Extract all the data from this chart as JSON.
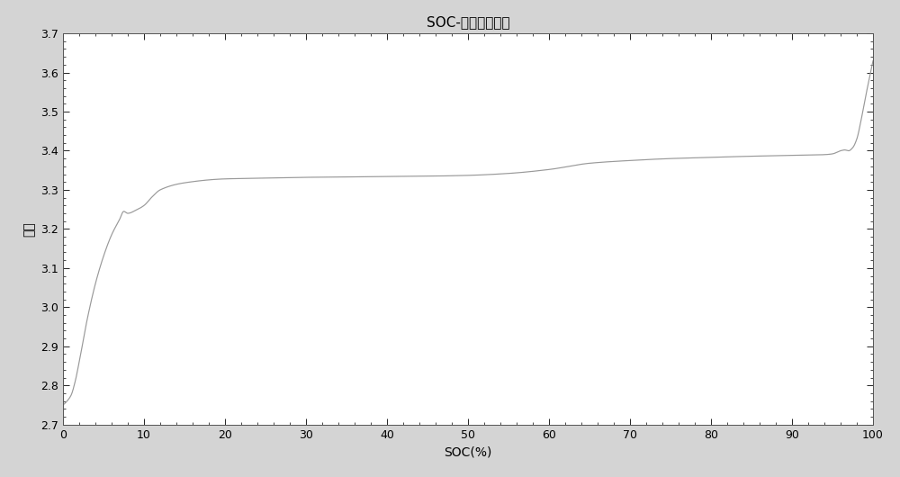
{
  "title": "SOC-电芯电压曲线",
  "xlabel": "SOC(%)",
  "ylabel": "电压",
  "xlim": [
    0,
    100
  ],
  "ylim": [
    2.7,
    3.7
  ],
  "xticks": [
    0,
    10,
    20,
    30,
    40,
    50,
    60,
    70,
    80,
    90,
    100
  ],
  "yticks": [
    2.7,
    2.8,
    2.9,
    3.0,
    3.1,
    3.2,
    3.3,
    3.4,
    3.5,
    3.6,
    3.7
  ],
  "line_color": "#999999",
  "background_color": "#d4d4d4",
  "axes_background": "#ffffff",
  "title_fontsize": 11,
  "label_fontsize": 10,
  "tick_fontsize": 9
}
